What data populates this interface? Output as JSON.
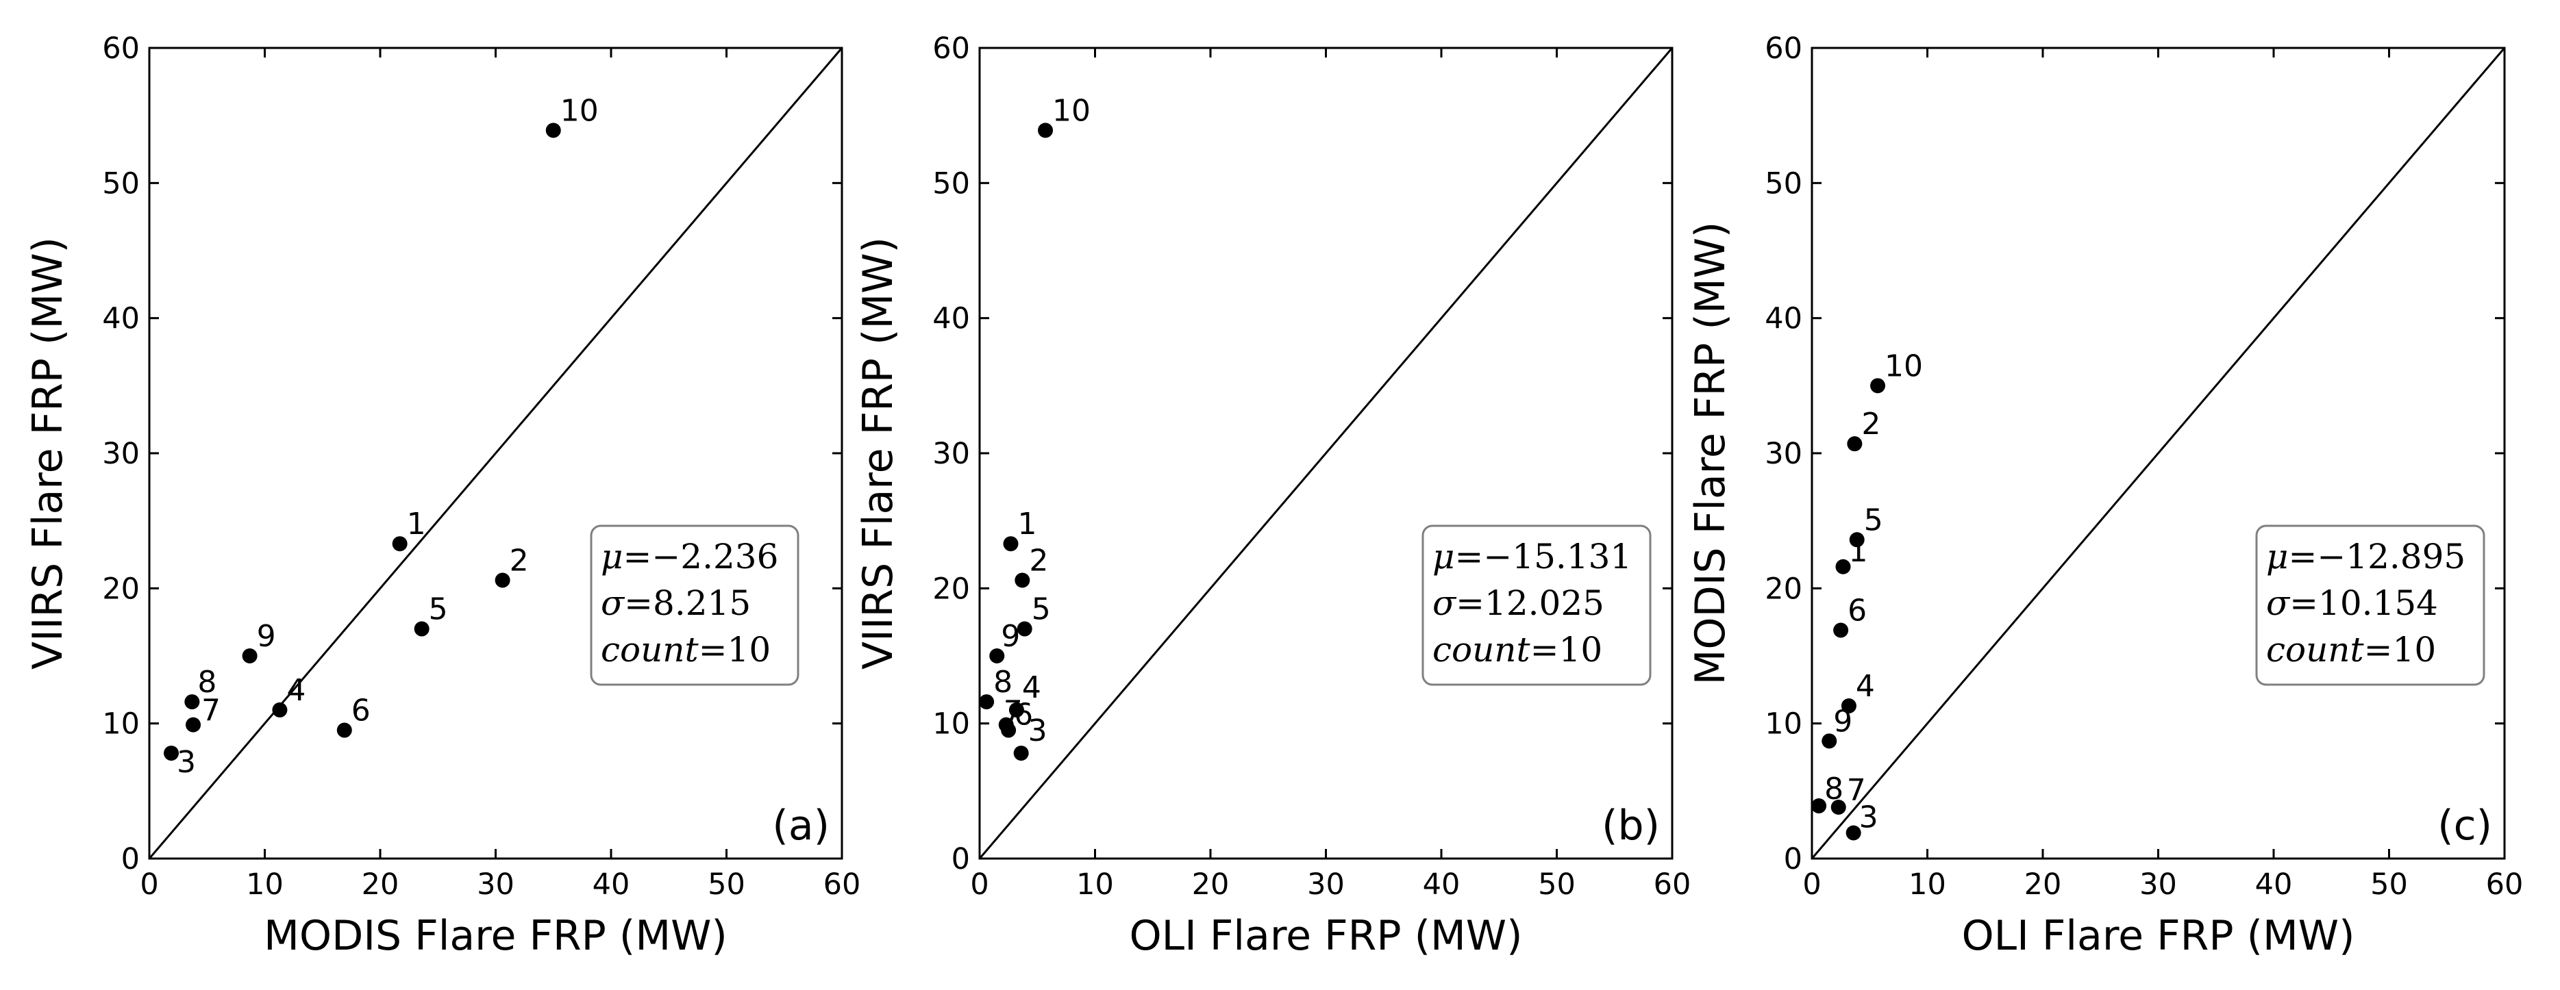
{
  "colors": {
    "background": "#ffffff",
    "axis": "#000000",
    "marker": "#000000",
    "identity_line": "#000000",
    "stats_box_border": "#808080"
  },
  "chart_data": [
    {
      "type": "scatter",
      "panel_label": "(a)",
      "xlabel": "MODIS Flare FRP (MW)",
      "ylabel": "VIIRS Flare FRP (MW)",
      "xlim": [
        0,
        60
      ],
      "ylim": [
        0,
        60
      ],
      "xticks": [
        "0",
        "10",
        "20",
        "30",
        "40",
        "50",
        "60"
      ],
      "yticks": [
        "0",
        "10",
        "20",
        "30",
        "40",
        "50",
        "60"
      ],
      "identity_line": true,
      "stats": {
        "mu_symbol": "μ",
        "mu_value": "−2.236",
        "sigma_symbol": "σ",
        "sigma_value": "8.215",
        "count_label": "count",
        "count_value": "10"
      },
      "points": [
        {
          "label": "1",
          "x": 21.7,
          "y": 23.3
        },
        {
          "label": "2",
          "x": 30.6,
          "y": 20.6
        },
        {
          "label": "3",
          "x": 1.9,
          "y": 7.8
        },
        {
          "label": "4",
          "x": 11.3,
          "y": 11.0
        },
        {
          "label": "5",
          "x": 23.6,
          "y": 17.0
        },
        {
          "label": "6",
          "x": 16.9,
          "y": 9.5
        },
        {
          "label": "7",
          "x": 3.8,
          "y": 9.9
        },
        {
          "label": "8",
          "x": 3.7,
          "y": 11.6
        },
        {
          "label": "9",
          "x": 8.7,
          "y": 15.0
        },
        {
          "label": "10",
          "x": 35.0,
          "y": 53.9
        }
      ]
    },
    {
      "type": "scatter",
      "panel_label": "(b)",
      "xlabel": "OLI Flare FRP (MW)",
      "ylabel": "VIIRS Flare FRP (MW)",
      "xlim": [
        0,
        60
      ],
      "ylim": [
        0,
        60
      ],
      "xticks": [
        "0",
        "10",
        "20",
        "30",
        "40",
        "50",
        "60"
      ],
      "yticks": [
        "0",
        "10",
        "20",
        "30",
        "40",
        "50",
        "60"
      ],
      "identity_line": true,
      "stats": {
        "mu_symbol": "μ",
        "mu_value": "−15.131",
        "sigma_symbol": "σ",
        "sigma_value": "12.025",
        "count_label": "count",
        "count_value": "10"
      },
      "points": [
        {
          "label": "1",
          "x": 2.7,
          "y": 23.3
        },
        {
          "label": "2",
          "x": 3.7,
          "y": 20.6
        },
        {
          "label": "3",
          "x": 3.6,
          "y": 7.8
        },
        {
          "label": "4",
          "x": 3.2,
          "y": 11.0
        },
        {
          "label": "5",
          "x": 3.9,
          "y": 17.0
        },
        {
          "label": "6",
          "x": 2.5,
          "y": 9.5
        },
        {
          "label": "7",
          "x": 2.3,
          "y": 9.9
        },
        {
          "label": "8",
          "x": 0.6,
          "y": 11.6
        },
        {
          "label": "9",
          "x": 1.5,
          "y": 15.0
        },
        {
          "label": "10",
          "x": 5.7,
          "y": 53.9
        }
      ]
    },
    {
      "type": "scatter",
      "panel_label": "(c)",
      "xlabel": "OLI Flare FRP (MW)",
      "ylabel": "MODIS Flare FRP (MW)",
      "xlim": [
        0,
        60
      ],
      "ylim": [
        0,
        60
      ],
      "xticks": [
        "0",
        "10",
        "20",
        "30",
        "40",
        "50",
        "60"
      ],
      "yticks": [
        "0",
        "10",
        "20",
        "30",
        "40",
        "50",
        "60"
      ],
      "identity_line": true,
      "stats": {
        "mu_symbol": "μ",
        "mu_value": "−12.895",
        "sigma_symbol": "σ",
        "sigma_value": "10.154",
        "count_label": "count",
        "count_value": "10"
      },
      "points": [
        {
          "label": "1",
          "x": 2.7,
          "y": 21.6
        },
        {
          "label": "2",
          "x": 3.7,
          "y": 30.7
        },
        {
          "label": "3",
          "x": 3.6,
          "y": 1.9
        },
        {
          "label": "4",
          "x": 3.2,
          "y": 11.3
        },
        {
          "label": "5",
          "x": 3.9,
          "y": 23.6
        },
        {
          "label": "6",
          "x": 2.5,
          "y": 16.9
        },
        {
          "label": "7",
          "x": 2.3,
          "y": 3.8
        },
        {
          "label": "8",
          "x": 0.6,
          "y": 3.9
        },
        {
          "label": "9",
          "x": 1.5,
          "y": 8.7
        },
        {
          "label": "10",
          "x": 5.7,
          "y": 35.0
        }
      ]
    }
  ]
}
